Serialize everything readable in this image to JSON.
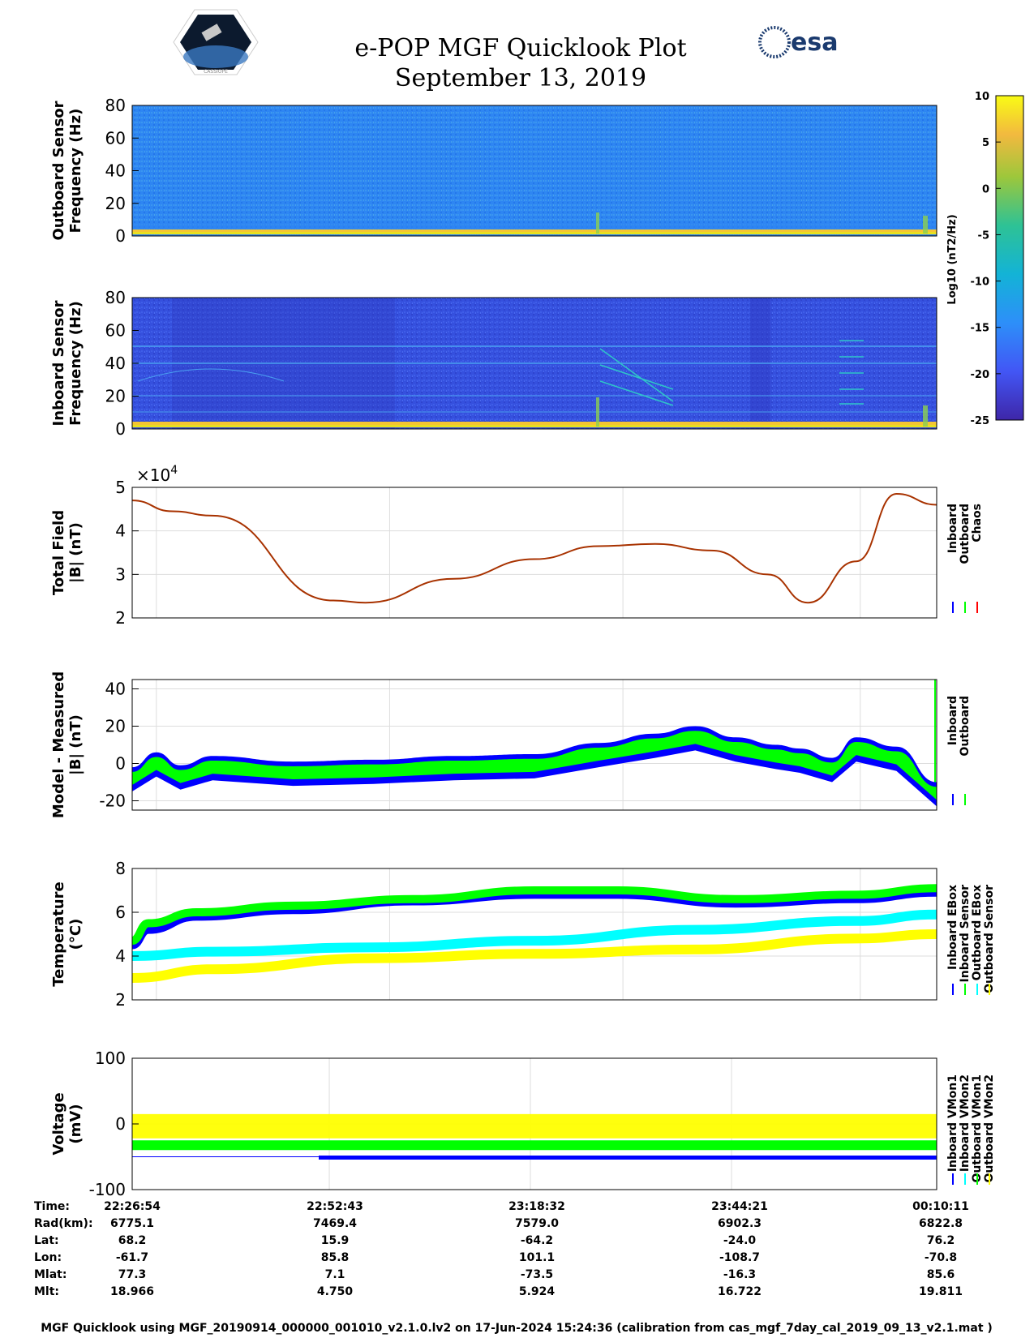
{
  "header": {
    "title": "e-POP MGF Quicklook Plot",
    "date": "September 13, 2019",
    "logo_left": "CASSIOPE",
    "logo_right": "esa"
  },
  "colors": {
    "inboard": "#0000ff",
    "outboard": "#00ff00",
    "chaos": "#ff0000",
    "cyan": "#00ffff",
    "yellow": "#ffff00",
    "curve": "#a83200"
  },
  "chart_data": [
    {
      "type": "heatmap",
      "name": "outboard-spectrogram",
      "ylabel": [
        "Outboard Sensor",
        "Frequency (Hz)"
      ],
      "ylim": [
        0,
        80
      ],
      "yticks": [
        "0",
        "20",
        "40",
        "60",
        "80"
      ]
    },
    {
      "type": "heatmap",
      "name": "inboard-spectrogram",
      "ylabel": [
        "Inboard Sensor",
        "Frequency (Hz)"
      ],
      "ylim": [
        0,
        80
      ],
      "yticks": [
        "0",
        "20",
        "40",
        "60",
        "80"
      ]
    },
    {
      "type": "colorbar",
      "name": "colorbar",
      "label": "Log10 (nT2/Hz)",
      "ylim": [
        -25,
        10
      ],
      "ticks": [
        "10",
        "5",
        "0",
        "-5",
        "-10",
        "-15",
        "-20",
        "-25"
      ]
    },
    {
      "type": "line",
      "name": "total-field",
      "ylabel": [
        "Total Field",
        "|B| (nT)"
      ],
      "ylim": [
        2,
        5
      ],
      "yticks": [
        "2",
        "3",
        "4",
        "5"
      ],
      "exponent": "×10",
      "exponent_power": "4",
      "legend": [
        "Inboard",
        "Outboard",
        "Chaos"
      ],
      "x": [
        0,
        0.05,
        0.1,
        0.25,
        0.29,
        0.4,
        0.5,
        0.58,
        0.65,
        0.72,
        0.79,
        0.84,
        0.9,
        0.95,
        1.0
      ],
      "y": [
        4.7,
        4.45,
        4.35,
        2.4,
        2.35,
        2.9,
        3.35,
        3.65,
        3.7,
        3.55,
        3.0,
        2.35,
        3.3,
        4.85,
        4.6
      ]
    },
    {
      "type": "line",
      "name": "model-measured",
      "ylabel": [
        "Model - Measured",
        "|B| (nT)"
      ],
      "ylim": [
        -25,
        45
      ],
      "yticks": [
        "-20",
        "0",
        "20",
        "40"
      ],
      "legend": [
        "Inboard",
        "Outboard"
      ],
      "x": [
        0,
        0.03,
        0.06,
        0.1,
        0.2,
        0.3,
        0.4,
        0.5,
        0.58,
        0.65,
        0.7,
        0.75,
        0.8,
        0.83,
        0.87,
        0.9,
        0.95,
        1.0
      ],
      "y": [
        -8,
        0,
        -7,
        -2,
        -5,
        -4,
        -2,
        -1,
        5,
        10,
        14,
        8,
        4,
        2,
        -3,
        8,
        3,
        -16
      ]
    },
    {
      "type": "line",
      "name": "temperature",
      "ylabel": [
        "Temperature",
        "(°C)"
      ],
      "ylim": [
        2,
        8
      ],
      "yticks": [
        "2",
        "4",
        "6",
        "8"
      ],
      "legend": [
        "Inboard EBox",
        "Inboard Sensor",
        "Outboard EBox",
        "Outboard Sensor"
      ],
      "series": [
        {
          "color": "#0000ff",
          "x": [
            0,
            0.02,
            0.08,
            0.2,
            0.35,
            0.5,
            0.6,
            0.75,
            0.9,
            1.0
          ],
          "y": [
            4.5,
            5.2,
            5.8,
            6.1,
            6.5,
            6.8,
            6.8,
            6.4,
            6.6,
            6.9
          ]
        },
        {
          "color": "#00ff00",
          "x": [
            0,
            0.02,
            0.08,
            0.2,
            0.35,
            0.5,
            0.6,
            0.75,
            0.9,
            1.0
          ],
          "y": [
            4.7,
            5.5,
            6.0,
            6.3,
            6.6,
            7.0,
            7.0,
            6.6,
            6.8,
            7.1
          ]
        },
        {
          "color": "#00ffff",
          "x": [
            0,
            0.1,
            0.3,
            0.5,
            0.7,
            0.9,
            1.0
          ],
          "y": [
            4.0,
            4.2,
            4.4,
            4.7,
            5.2,
            5.6,
            5.9
          ]
        },
        {
          "color": "#ffff00",
          "x": [
            0,
            0.1,
            0.3,
            0.5,
            0.7,
            0.9,
            1.0
          ],
          "y": [
            3.0,
            3.4,
            3.9,
            4.1,
            4.3,
            4.8,
            5.0
          ]
        }
      ]
    },
    {
      "type": "line",
      "name": "voltage",
      "ylabel": [
        "Voltage",
        "(mV)"
      ],
      "ylim": [
        -100,
        100
      ],
      "yticks": [
        "-100",
        "0",
        "100"
      ],
      "legend": [
        "Inboard VMon1",
        "Inboard VMon2",
        "Outboard VMon1",
        "Outboard VMon2"
      ],
      "series": [
        {
          "color": "#0000ff",
          "level": -50
        },
        {
          "color": "#00ffff",
          "level": -20
        },
        {
          "color": "#00ff00",
          "level": -20
        },
        {
          "color": "#ffff00",
          "level": -5
        }
      ]
    }
  ],
  "ephemeris": {
    "labels": [
      "Time:",
      "Rad(km):",
      "Lat:",
      "Lon:",
      "Mlat:",
      "Mlt:"
    ],
    "columns": [
      [
        "22:26:54",
        "6775.1",
        "68.2",
        "-61.7",
        "77.3",
        "18.966"
      ],
      [
        "22:52:43",
        "7469.4",
        "15.9",
        "85.8",
        "7.1",
        "4.750"
      ],
      [
        "23:18:32",
        "7579.0",
        "-64.2",
        "101.1",
        "-73.5",
        "5.924"
      ],
      [
        "23:44:21",
        "6902.3",
        "-24.0",
        "-108.7",
        "-16.3",
        "16.722"
      ],
      [
        "00:10:11",
        "6822.8",
        "76.2",
        "-70.8",
        "85.6",
        "19.811"
      ]
    ]
  },
  "footer": "MGF Quicklook using MGF_20190914_000000_001010_v2.1.0.lv2 on 17-Jun-2024 15:24:36 (calibration from cas_mgf_7day_cal_2019_09_13_v2.1.mat )"
}
